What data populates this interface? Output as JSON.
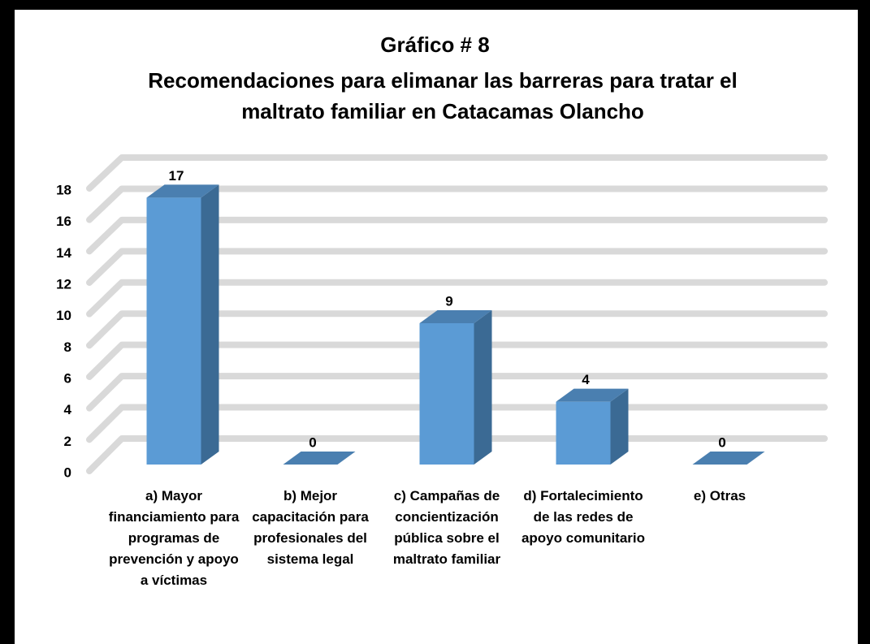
{
  "chart_data": {
    "type": "bar3d",
    "title": "Gráfico # 8",
    "subtitle": "Recomendaciones para elimanar las barreras para tratar el maltrato familiar en Catacamas Olancho",
    "categories": [
      "a) Mayor financiamiento para programas de prevención y apoyo a víctimas",
      "b) Mejor capacitación para profesionales del sistema legal",
      "c) Campañas de concientización pública sobre el maltrato familiar",
      "d) Fortalecimiento de las redes de apoyo comunitario",
      "e) Otras"
    ],
    "values": [
      17,
      0,
      9,
      4,
      0
    ],
    "color": "#5b9bd5",
    "ylim": [
      0,
      18
    ],
    "yticks": [
      0,
      2,
      4,
      6,
      8,
      10,
      12,
      14,
      16,
      18
    ],
    "grid": true
  }
}
